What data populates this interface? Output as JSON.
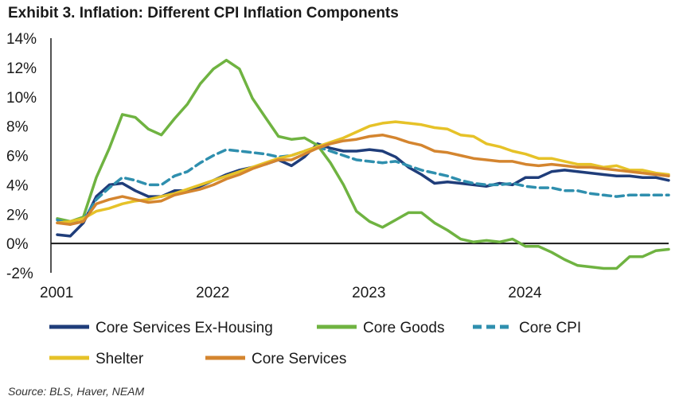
{
  "chart_data": {
    "type": "line",
    "title": "Exhibit 3. Inflation: Different CPI Inflation Components",
    "source": "Source: BLS, Haver, NEAM",
    "xlabel": "",
    "ylabel": "",
    "x_ticks": [
      {
        "label": "2001",
        "t": 0
      },
      {
        "label": "2022",
        "t": 12
      },
      {
        "label": "2023",
        "t": 24
      },
      {
        "label": "2024",
        "t": 36
      }
    ],
    "x_range": [
      0,
      47
    ],
    "y_range": [
      -2,
      14
    ],
    "y_ticks": [
      -2,
      0,
      2,
      4,
      6,
      8,
      10,
      12,
      14
    ],
    "y_tick_labels": [
      "-2%",
      "0%",
      "2%",
      "4%",
      "6%",
      "8%",
      "10%",
      "12%",
      "14%"
    ],
    "series": [
      {
        "name": "Core Services Ex-Housing",
        "color": "#1f3d7a",
        "dash": "",
        "legend_row": 0,
        "values": [
          0.6,
          0.5,
          1.4,
          3.2,
          4.0,
          4.1,
          3.6,
          3.2,
          3.2,
          3.6,
          3.6,
          3.9,
          4.3,
          4.7,
          5.0,
          5.2,
          5.4,
          5.7,
          5.3,
          5.9,
          6.8,
          6.5,
          6.3,
          6.3,
          6.4,
          6.3,
          5.9,
          5.2,
          4.7,
          4.1,
          4.2,
          4.1,
          4.0,
          3.9,
          4.1,
          4.0,
          4.5,
          4.5,
          4.9,
          5.0,
          4.9,
          4.8,
          4.7,
          4.6,
          4.6,
          4.5,
          4.5,
          4.3
        ]
      },
      {
        "name": "Core Goods",
        "color": "#6fb341",
        "dash": "",
        "legend_row": 0,
        "values": [
          1.7,
          1.5,
          1.8,
          4.5,
          6.5,
          8.8,
          8.6,
          7.8,
          7.4,
          8.5,
          9.5,
          10.9,
          11.9,
          12.5,
          11.9,
          9.9,
          8.6,
          7.3,
          7.1,
          7.2,
          6.7,
          5.5,
          4.0,
          2.2,
          1.5,
          1.1,
          1.6,
          2.1,
          2.1,
          1.4,
          0.9,
          0.3,
          0.1,
          0.2,
          0.1,
          0.3,
          -0.2,
          -0.2,
          -0.6,
          -1.1,
          -1.5,
          -1.6,
          -1.7,
          -1.7,
          -0.9,
          -0.9,
          -0.5,
          -0.4
        ]
      },
      {
        "name": "Core CPI",
        "color": "#2f8fae",
        "dash": "10,6",
        "legend_row": 0,
        "values": [
          1.6,
          1.3,
          1.6,
          3.0,
          3.8,
          4.5,
          4.3,
          4.0,
          4.0,
          4.6,
          4.9,
          5.5,
          6.0,
          6.4,
          6.3,
          6.2,
          6.1,
          5.9,
          6.0,
          6.3,
          6.6,
          6.3,
          6.0,
          5.7,
          5.6,
          5.5,
          5.6,
          5.3,
          5.0,
          4.8,
          4.6,
          4.3,
          4.1,
          4.0,
          4.0,
          4.1,
          3.9,
          3.8,
          3.8,
          3.6,
          3.6,
          3.4,
          3.3,
          3.2,
          3.3,
          3.3,
          3.3,
          3.3
        ]
      },
      {
        "name": "Shelter",
        "color": "#e6c228",
        "dash": "",
        "legend_row": 1,
        "values": [
          1.4,
          1.5,
          1.7,
          2.2,
          2.4,
          2.7,
          2.9,
          3.0,
          3.2,
          3.4,
          3.7,
          4.0,
          4.3,
          4.6,
          4.9,
          5.2,
          5.5,
          5.8,
          6.0,
          6.3,
          6.6,
          6.9,
          7.2,
          7.6,
          8.0,
          8.2,
          8.3,
          8.2,
          8.1,
          7.9,
          7.8,
          7.4,
          7.3,
          6.8,
          6.6,
          6.3,
          6.1,
          5.8,
          5.8,
          5.6,
          5.4,
          5.4,
          5.2,
          5.3,
          5.0,
          5.0,
          4.8,
          4.7
        ]
      },
      {
        "name": "Core Services",
        "color": "#d4852f",
        "dash": "",
        "legend_row": 1,
        "values": [
          1.4,
          1.3,
          1.5,
          2.7,
          3.0,
          3.2,
          3.0,
          2.8,
          2.9,
          3.3,
          3.5,
          3.7,
          4.0,
          4.4,
          4.7,
          5.1,
          5.4,
          5.7,
          5.7,
          6.1,
          6.5,
          6.8,
          7.0,
          7.1,
          7.3,
          7.4,
          7.2,
          6.9,
          6.7,
          6.3,
          6.2,
          6.0,
          5.8,
          5.7,
          5.6,
          5.6,
          5.4,
          5.3,
          5.4,
          5.3,
          5.2,
          5.2,
          5.1,
          5.0,
          4.9,
          4.8,
          4.7,
          4.6
        ]
      }
    ],
    "legend_position": "bottom"
  }
}
